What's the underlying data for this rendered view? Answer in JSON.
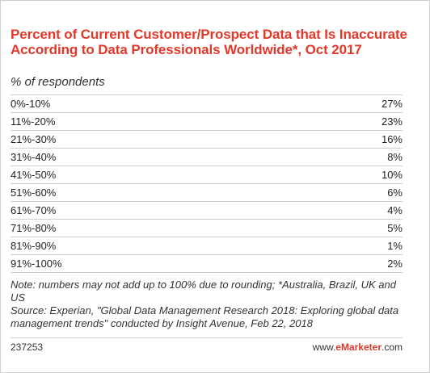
{
  "chart_data": {
    "type": "table",
    "title": "Percent of Current Customer/Prospect Data that Is Inaccurate According to Data Professionals Worldwide*, Oct 2017",
    "subtitle": "% of respondents",
    "categories": [
      "0%-10%",
      "11%-20%",
      "21%-30%",
      "31%-40%",
      "41%-50%",
      "51%-60%",
      "61%-70%",
      "71%-80%",
      "81%-90%",
      "91%-100%"
    ],
    "values": [
      27,
      23,
      16,
      8,
      10,
      6,
      4,
      5,
      1,
      2
    ],
    "value_labels": [
      "27%",
      "23%",
      "16%",
      "8%",
      "10%",
      "6%",
      "4%",
      "5%",
      "1%",
      "2%"
    ],
    "note": "Note: numbers may not add up to 100% due to rounding; *Australia, Brazil, UK and US",
    "source": "Source: Experian, \"Global Data Management Research 2018: Exploring global data management trends\" conducted by Insight Avenue, Feb 22, 2018"
  },
  "footer": {
    "chart_id": "237253",
    "brand_prefix": "www.",
    "brand_marketer": "eMarketer",
    "brand_suffix": ".com"
  },
  "colors": {
    "title": "#e2382a",
    "rule": "#cfcfcf",
    "text": "#222222"
  }
}
